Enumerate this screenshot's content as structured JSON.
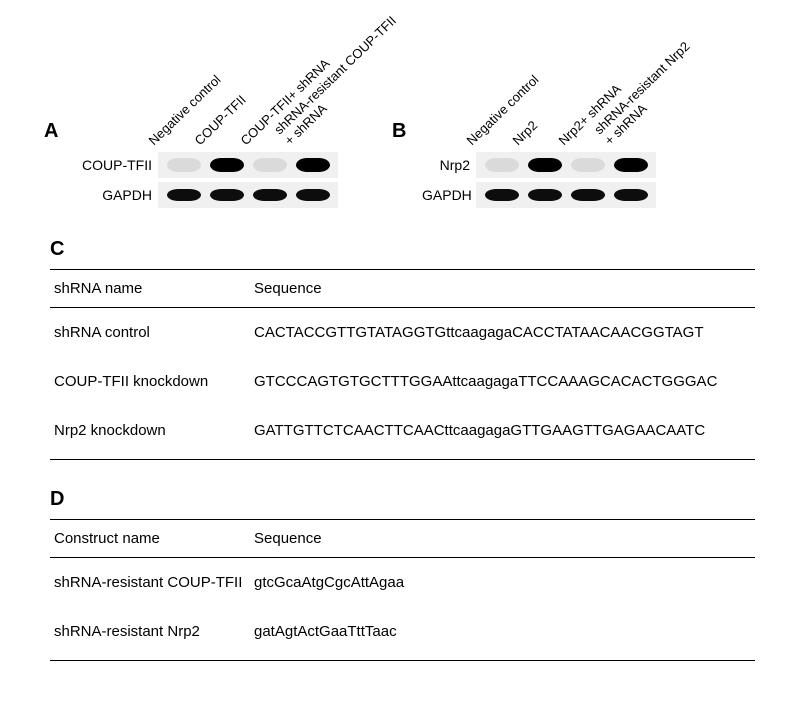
{
  "panelA": {
    "label": "A",
    "lanes": [
      "Negative control",
      "COUP-TFII",
      "COUP-TFII+ shRNA",
      "shRNA-resistant COUP-TFII\n+ shRNA"
    ],
    "rows": [
      {
        "label": "COUP-TFII",
        "bands": [
          {
            "cls": "band-faint w-lane"
          },
          {
            "cls": "band-strong w-lane"
          },
          {
            "cls": "band-faint w-lane"
          },
          {
            "cls": "band-strong w-lane"
          }
        ]
      },
      {
        "label": "GAPDH",
        "bands": [
          {
            "cls": "band-mid w-lane"
          },
          {
            "cls": "band-mid w-lane"
          },
          {
            "cls": "band-mid w-lane"
          },
          {
            "cls": "band-mid w-lane"
          }
        ]
      }
    ],
    "label_offsets": [
      82,
      128,
      174,
      218
    ]
  },
  "panelB": {
    "label": "B",
    "lanes": [
      "Negative control",
      "Nrp2",
      "Nrp2+ shRNA",
      "shRNA-resistant Nrp2\n+ shRNA"
    ],
    "rows": [
      {
        "label": "Nrp2",
        "bands": [
          {
            "cls": "band-faint w-lane"
          },
          {
            "cls": "band-strong w-lane"
          },
          {
            "cls": "band-faint w-lane"
          },
          {
            "cls": "band-strong w-lane"
          }
        ]
      },
      {
        "label": "GAPDH",
        "bands": [
          {
            "cls": "band-mid w-lane"
          },
          {
            "cls": "band-mid w-lane"
          },
          {
            "cls": "band-mid w-lane"
          },
          {
            "cls": "band-mid w-lane"
          }
        ]
      }
    ],
    "label_offsets": [
      52,
      98,
      144,
      190
    ]
  },
  "tableC": {
    "label": "C",
    "headers": [
      "shRNA name",
      "Sequence"
    ],
    "rows": [
      [
        "shRNA control",
        "CACTACCGTTGTATAGGTGttcaagagaCACCTATAACAACGGTAGT"
      ],
      [
        "COUP-TFII knockdown",
        "GTCCCAGTGTGCTTTGGAAttcaagagaTTCCAAAGCACACTGGGAC"
      ],
      [
        "Nrp2 knockdown",
        "GATTGTTCTCAACTTCAACttcaagagaGTTGAAGTTGAGAACAATC"
      ]
    ]
  },
  "tableD": {
    "label": "D",
    "headers": [
      "Construct name",
      "Sequence"
    ],
    "rows": [
      [
        "shRNA-resistant COUP-TFII",
        "gtcGcaAtgCgcAttAgaa"
      ],
      [
        "shRNA-resistant Nrp2",
        "gatAgtActGaaTttTaac"
      ]
    ]
  }
}
